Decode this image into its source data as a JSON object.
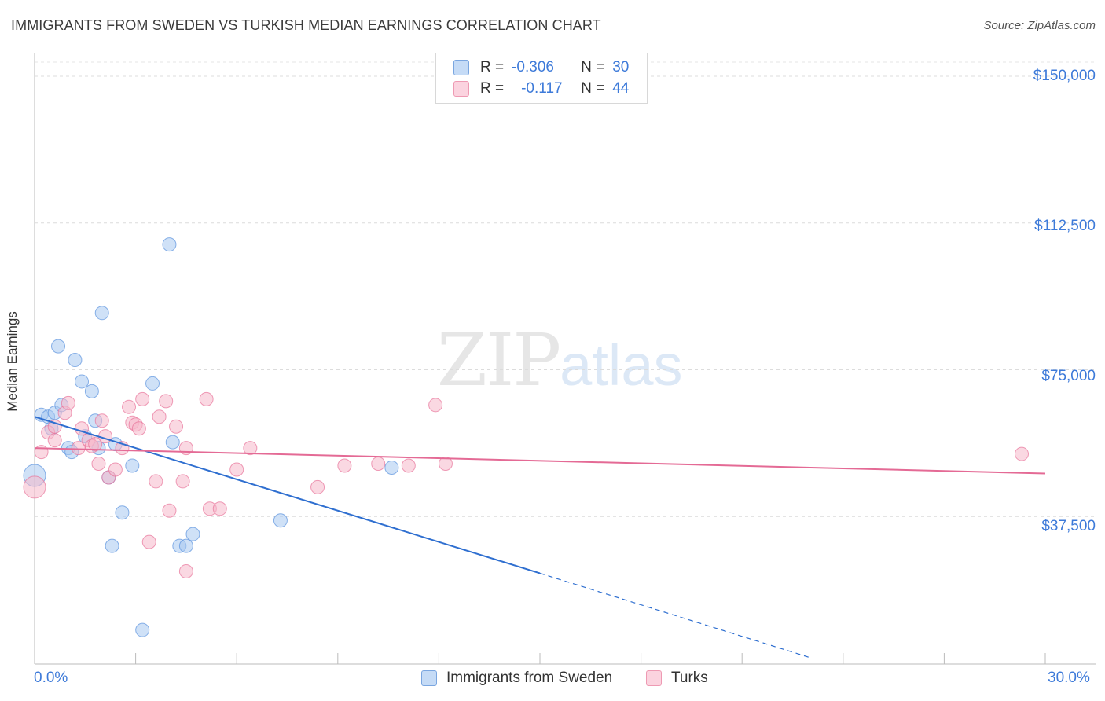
{
  "title": "IMMIGRANTS FROM SWEDEN VS TURKISH MEDIAN EARNINGS CORRELATION CHART",
  "source": "Source: ZipAtlas.com",
  "watermark": {
    "zip": "ZIP",
    "atlas": "atlas"
  },
  "legend": {
    "rows": [
      {
        "r_label": "R =",
        "r_value": "-0.306",
        "n_label": "N =",
        "n_value": "30",
        "color": "#a8c8f0"
      },
      {
        "r_label": "R =",
        "r_value": "-0.117",
        "n_label": "N =",
        "n_value": "44",
        "color": "#f5b8cb"
      }
    ]
  },
  "bottom_legend": [
    {
      "label": "Immigrants from Sweden",
      "color": "#a8c8f0"
    },
    {
      "label": "Turks",
      "color": "#f5b8cb"
    }
  ],
  "chart_data": {
    "type": "scatter",
    "title": "IMMIGRANTS FROM SWEDEN VS TURKISH MEDIAN EARNINGS CORRELATION CHART",
    "xlabel": "",
    "ylabel": "Median Earnings",
    "xlim": [
      0,
      30
    ],
    "ylim": [
      0,
      155000
    ],
    "x_tick_labels": [
      "0.0%",
      "30.0%"
    ],
    "y_ticks": [
      37500,
      75000,
      112500,
      150000
    ],
    "y_tick_labels": [
      "$37,500",
      "$75,000",
      "$112,500",
      "$150,000"
    ],
    "grid": true,
    "series": [
      {
        "name": "Immigrants from Sweden",
        "color": "#5b93de",
        "fill": "#a8c8f0",
        "points": [
          [
            0.0,
            48000
          ],
          [
            0.2,
            63500
          ],
          [
            0.4,
            63000
          ],
          [
            0.5,
            60000
          ],
          [
            0.6,
            64000
          ],
          [
            0.7,
            81000
          ],
          [
            0.8,
            66000
          ],
          [
            1.0,
            55000
          ],
          [
            1.1,
            54000
          ],
          [
            1.2,
            77500
          ],
          [
            1.4,
            72000
          ],
          [
            1.5,
            58000
          ],
          [
            1.7,
            69500
          ],
          [
            1.8,
            62000
          ],
          [
            1.9,
            55000
          ],
          [
            2.0,
            89500
          ],
          [
            2.2,
            47500
          ],
          [
            2.3,
            30000
          ],
          [
            2.4,
            56000
          ],
          [
            2.6,
            38500
          ],
          [
            2.9,
            50500
          ],
          [
            3.2,
            8500
          ],
          [
            3.5,
            71500
          ],
          [
            4.0,
            107000
          ],
          [
            4.1,
            56500
          ],
          [
            4.3,
            30000
          ],
          [
            4.5,
            30000
          ],
          [
            4.7,
            33000
          ],
          [
            7.3,
            36500
          ],
          [
            10.6,
            50000
          ]
        ],
        "trend": {
          "x": [
            0.0,
            15.0
          ],
          "y": [
            63000,
            23000
          ],
          "dash_to": [
            23.0,
            1500
          ]
        }
      },
      {
        "name": "Turks",
        "color": "#e8739a",
        "fill": "#f5b8cb",
        "points": [
          [
            0.0,
            45000
          ],
          [
            0.2,
            54000
          ],
          [
            0.4,
            59000
          ],
          [
            0.6,
            57000
          ],
          [
            0.6,
            60500
          ],
          [
            0.9,
            64000
          ],
          [
            1.0,
            66500
          ],
          [
            1.3,
            55000
          ],
          [
            1.4,
            60000
          ],
          [
            1.6,
            57000
          ],
          [
            1.7,
            55500
          ],
          [
            1.8,
            56000
          ],
          [
            1.9,
            51000
          ],
          [
            2.0,
            62000
          ],
          [
            2.1,
            58000
          ],
          [
            2.2,
            47500
          ],
          [
            2.4,
            49500
          ],
          [
            2.6,
            55000
          ],
          [
            2.8,
            65500
          ],
          [
            2.9,
            61500
          ],
          [
            3.0,
            61000
          ],
          [
            3.1,
            60000
          ],
          [
            3.2,
            67500
          ],
          [
            3.4,
            31000
          ],
          [
            3.6,
            46500
          ],
          [
            3.7,
            63000
          ],
          [
            3.9,
            67000
          ],
          [
            4.0,
            39000
          ],
          [
            4.2,
            60500
          ],
          [
            4.4,
            46500
          ],
          [
            4.5,
            23500
          ],
          [
            4.5,
            55000
          ],
          [
            5.1,
            67500
          ],
          [
            5.2,
            39500
          ],
          [
            5.5,
            39500
          ],
          [
            6.0,
            49500
          ],
          [
            6.4,
            55000
          ],
          [
            8.4,
            45000
          ],
          [
            9.2,
            50500
          ],
          [
            10.2,
            51000
          ],
          [
            11.1,
            50500
          ],
          [
            11.9,
            66000
          ],
          [
            12.2,
            51000
          ],
          [
            29.3,
            53500
          ]
        ],
        "trend": {
          "x": [
            0.0,
            30.0
          ],
          "y": [
            55000,
            48500
          ]
        }
      }
    ]
  }
}
